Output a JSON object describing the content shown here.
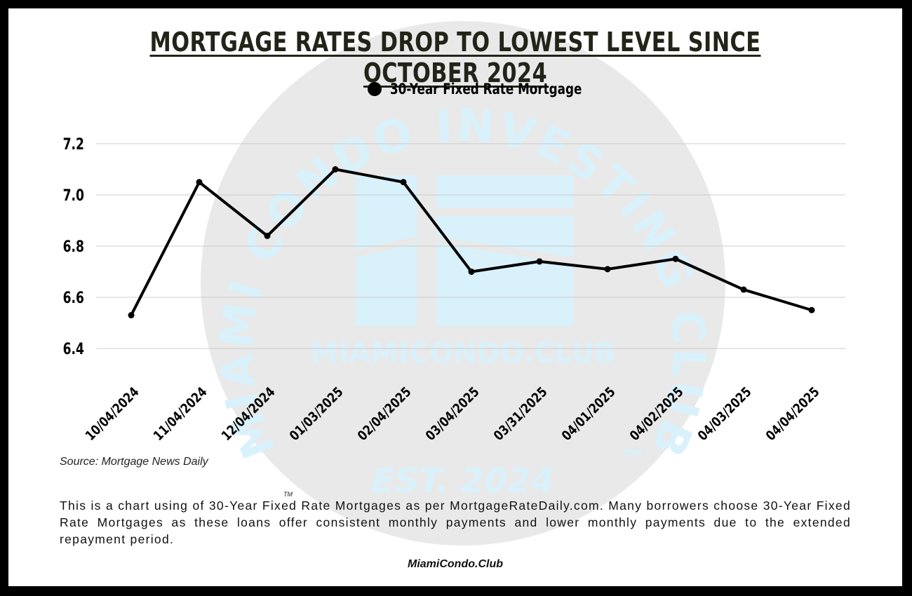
{
  "title": "MORTGAGE RATES DROP TO LOWEST LEVEL SINCE OCTOBER 2024",
  "colors": {
    "line": "#000000",
    "grid": "#cccccc",
    "watermark_circle": "#e9e9e9",
    "watermark_text": "#d9f1fb"
  },
  "watermark": {
    "arc_text": "MIAMI CONDO INVESTING CLUB",
    "trademark": "TM",
    "site": "MIAMICONDO.CLUB",
    "established": "EST. 2024"
  },
  "chart_data": {
    "type": "line",
    "categories": [
      "10/04/2024",
      "11/04/2024",
      "12/04/2024",
      "01/03/2025",
      "02/04/2025",
      "03/04/2025",
      "03/31/2025",
      "04/01/2025",
      "04/02/2025",
      "04/03/2025",
      "04/04/2025"
    ],
    "series": [
      {
        "name": "30-Year Fixed Rate Mortgage",
        "values": [
          6.53,
          7.05,
          6.84,
          7.1,
          7.05,
          6.7,
          6.74,
          6.71,
          6.75,
          6.63,
          6.55
        ]
      }
    ],
    "yticks": [
      "6.4",
      "6.6",
      "6.8",
      "7.0",
      "7.2"
    ],
    "ylim": [
      6.4,
      7.2
    ],
    "xlabel": "",
    "ylabel": "",
    "grid": true,
    "legend": "top-center"
  },
  "source": "Source: Mortgage News Daily",
  "trademark": "TM",
  "description": "This is a chart using of 30-Year Fixed Rate Mortgages as per MortgageRateDaily.com. Many borrowers choose 30-Year Fixed Rate Mortgages as these loans offer consistent monthly payments and lower monthly payments due to the extended repayment period.",
  "footer": "MiamiCondo.Club"
}
